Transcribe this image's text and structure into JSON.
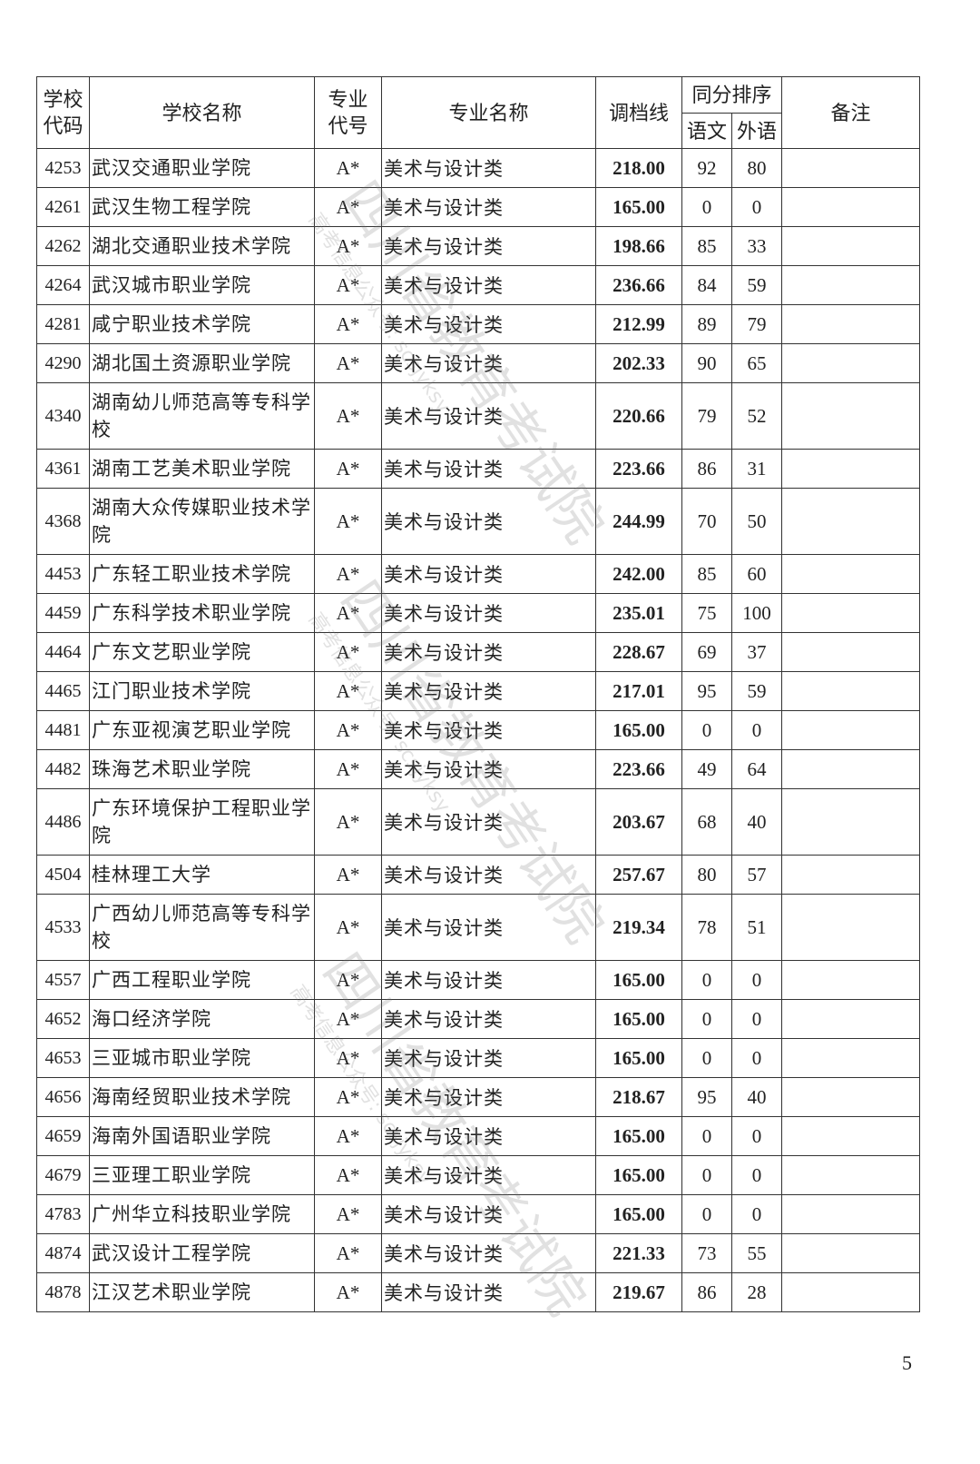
{
  "headers": {
    "school_code": "学校代码",
    "school_name": "学校名称",
    "major_code": "专业代号",
    "major_name": "专业名称",
    "cutoff": "调档线",
    "tie_rank": "同分排序",
    "chinese": "语文",
    "foreign": "外语",
    "remarks": "备注"
  },
  "rows": [
    {
      "code": "4253",
      "name": "武汉交通职业学院",
      "major_code": "A*",
      "major": "美术与设计类",
      "score": "218.00",
      "chinese": "92",
      "foreign": "80",
      "remark": ""
    },
    {
      "code": "4261",
      "name": "武汉生物工程学院",
      "major_code": "A*",
      "major": "美术与设计类",
      "score": "165.00",
      "chinese": "0",
      "foreign": "0",
      "remark": ""
    },
    {
      "code": "4262",
      "name": "湖北交通职业技术学院",
      "major_code": "A*",
      "major": "美术与设计类",
      "score": "198.66",
      "chinese": "85",
      "foreign": "33",
      "remark": ""
    },
    {
      "code": "4264",
      "name": "武汉城市职业学院",
      "major_code": "A*",
      "major": "美术与设计类",
      "score": "236.66",
      "chinese": "84",
      "foreign": "59",
      "remark": ""
    },
    {
      "code": "4281",
      "name": "咸宁职业技术学院",
      "major_code": "A*",
      "major": "美术与设计类",
      "score": "212.99",
      "chinese": "89",
      "foreign": "79",
      "remark": ""
    },
    {
      "code": "4290",
      "name": "湖北国土资源职业学院",
      "major_code": "A*",
      "major": "美术与设计类",
      "score": "202.33",
      "chinese": "90",
      "foreign": "65",
      "remark": ""
    },
    {
      "code": "4340",
      "name": "湖南幼儿师范高等专科学校",
      "major_code": "A*",
      "major": "美术与设计类",
      "score": "220.66",
      "chinese": "79",
      "foreign": "52",
      "remark": ""
    },
    {
      "code": "4361",
      "name": "湖南工艺美术职业学院",
      "major_code": "A*",
      "major": "美术与设计类",
      "score": "223.66",
      "chinese": "86",
      "foreign": "31",
      "remark": ""
    },
    {
      "code": "4368",
      "name": "湖南大众传媒职业技术学院",
      "major_code": "A*",
      "major": "美术与设计类",
      "score": "244.99",
      "chinese": "70",
      "foreign": "50",
      "remark": ""
    },
    {
      "code": "4453",
      "name": "广东轻工职业技术学院",
      "major_code": "A*",
      "major": "美术与设计类",
      "score": "242.00",
      "chinese": "85",
      "foreign": "60",
      "remark": ""
    },
    {
      "code": "4459",
      "name": "广东科学技术职业学院",
      "major_code": "A*",
      "major": "美术与设计类",
      "score": "235.01",
      "chinese": "75",
      "foreign": "100",
      "remark": ""
    },
    {
      "code": "4464",
      "name": "广东文艺职业学院",
      "major_code": "A*",
      "major": "美术与设计类",
      "score": "228.67",
      "chinese": "69",
      "foreign": "37",
      "remark": ""
    },
    {
      "code": "4465",
      "name": "江门职业技术学院",
      "major_code": "A*",
      "major": "美术与设计类",
      "score": "217.01",
      "chinese": "95",
      "foreign": "59",
      "remark": ""
    },
    {
      "code": "4481",
      "name": "广东亚视演艺职业学院",
      "major_code": "A*",
      "major": "美术与设计类",
      "score": "165.00",
      "chinese": "0",
      "foreign": "0",
      "remark": ""
    },
    {
      "code": "4482",
      "name": "珠海艺术职业学院",
      "major_code": "A*",
      "major": "美术与设计类",
      "score": "223.66",
      "chinese": "49",
      "foreign": "64",
      "remark": ""
    },
    {
      "code": "4486",
      "name": "广东环境保护工程职业学院",
      "major_code": "A*",
      "major": "美术与设计类",
      "score": "203.67",
      "chinese": "68",
      "foreign": "40",
      "remark": ""
    },
    {
      "code": "4504",
      "name": "桂林理工大学",
      "major_code": "A*",
      "major": "美术与设计类",
      "score": "257.67",
      "chinese": "80",
      "foreign": "57",
      "remark": ""
    },
    {
      "code": "4533",
      "name": "广西幼儿师范高等专科学校",
      "major_code": "A*",
      "major": "美术与设计类",
      "score": "219.34",
      "chinese": "78",
      "foreign": "51",
      "remark": ""
    },
    {
      "code": "4557",
      "name": "广西工程职业学院",
      "major_code": "A*",
      "major": "美术与设计类",
      "score": "165.00",
      "chinese": "0",
      "foreign": "0",
      "remark": ""
    },
    {
      "code": "4652",
      "name": "海口经济学院",
      "major_code": "A*",
      "major": "美术与设计类",
      "score": "165.00",
      "chinese": "0",
      "foreign": "0",
      "remark": ""
    },
    {
      "code": "4653",
      "name": "三亚城市职业学院",
      "major_code": "A*",
      "major": "美术与设计类",
      "score": "165.00",
      "chinese": "0",
      "foreign": "0",
      "remark": ""
    },
    {
      "code": "4656",
      "name": "海南经贸职业技术学院",
      "major_code": "A*",
      "major": "美术与设计类",
      "score": "218.67",
      "chinese": "95",
      "foreign": "40",
      "remark": ""
    },
    {
      "code": "4659",
      "name": "海南外国语职业学院",
      "major_code": "A*",
      "major": "美术与设计类",
      "score": "165.00",
      "chinese": "0",
      "foreign": "0",
      "remark": ""
    },
    {
      "code": "4679",
      "name": "三亚理工职业学院",
      "major_code": "A*",
      "major": "美术与设计类",
      "score": "165.00",
      "chinese": "0",
      "foreign": "0",
      "remark": ""
    },
    {
      "code": "4783",
      "name": "广州华立科技职业学院",
      "major_code": "A*",
      "major": "美术与设计类",
      "score": "165.00",
      "chinese": "0",
      "foreign": "0",
      "remark": ""
    },
    {
      "code": "4874",
      "name": "武汉设计工程学院",
      "major_code": "A*",
      "major": "美术与设计类",
      "score": "221.33",
      "chinese": "73",
      "foreign": "55",
      "remark": ""
    },
    {
      "code": "4878",
      "name": "江汉艺术职业学院",
      "major_code": "A*",
      "major": "美术与设计类",
      "score": "219.67",
      "chinese": "86",
      "foreign": "28",
      "remark": ""
    }
  ],
  "page_number": "5",
  "watermark": {
    "main": "四川省教育考试院",
    "sub": "高考信息公众号: scsjyksy"
  }
}
